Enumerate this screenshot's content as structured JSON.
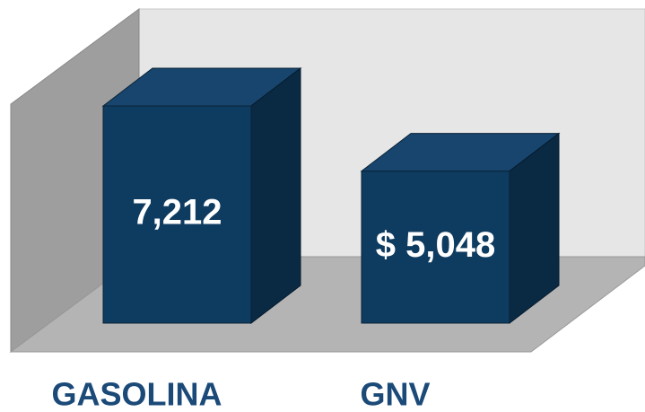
{
  "chart_data": {
    "type": "bar3d",
    "categories": [
      "GASOLINA",
      "GNV"
    ],
    "values": [
      7212,
      5048
    ],
    "value_labels": [
      "7,212",
      "$ 5,048"
    ],
    "color": "#0e3b60"
  }
}
